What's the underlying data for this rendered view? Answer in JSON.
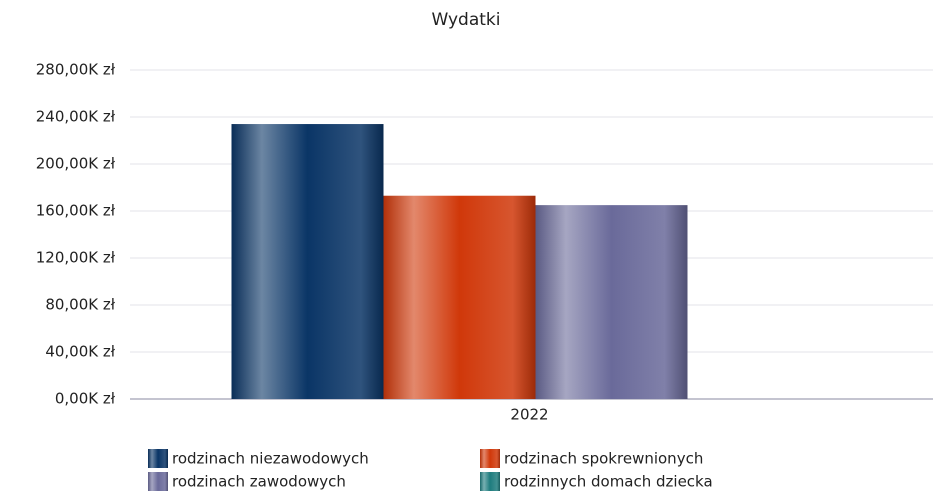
{
  "chart_data": {
    "type": "bar",
    "title": "Wydatki",
    "categories": [
      "2022"
    ],
    "series": [
      {
        "name": "rodzinach niezawodowych",
        "color": "#0a3566",
        "values": [
          234000
        ]
      },
      {
        "name": "rodzinach spokrewnionych",
        "color": "#d0380a",
        "values": [
          173000
        ]
      },
      {
        "name": "rodzinach zawodowych",
        "color": "#6a6a9a",
        "values": [
          165000
        ]
      },
      {
        "name": "rodzinnych domach dziecka",
        "color": "#1e7c7e",
        "values": [
          0
        ]
      }
    ],
    "ylim": [
      0,
      280000
    ],
    "yticks": [
      {
        "value": 0,
        "label": "0,00K zł"
      },
      {
        "value": 40000,
        "label": "40,00K zł"
      },
      {
        "value": 80000,
        "label": "80,00K zł"
      },
      {
        "value": 120000,
        "label": "120,00K zł"
      },
      {
        "value": 160000,
        "label": "160,00K zł"
      },
      {
        "value": 200000,
        "label": "200,00K zł"
      },
      {
        "value": 240000,
        "label": "240,00K zł"
      },
      {
        "value": 280000,
        "label": "280,00K zł"
      }
    ],
    "grid": true,
    "legend": "bottom"
  }
}
